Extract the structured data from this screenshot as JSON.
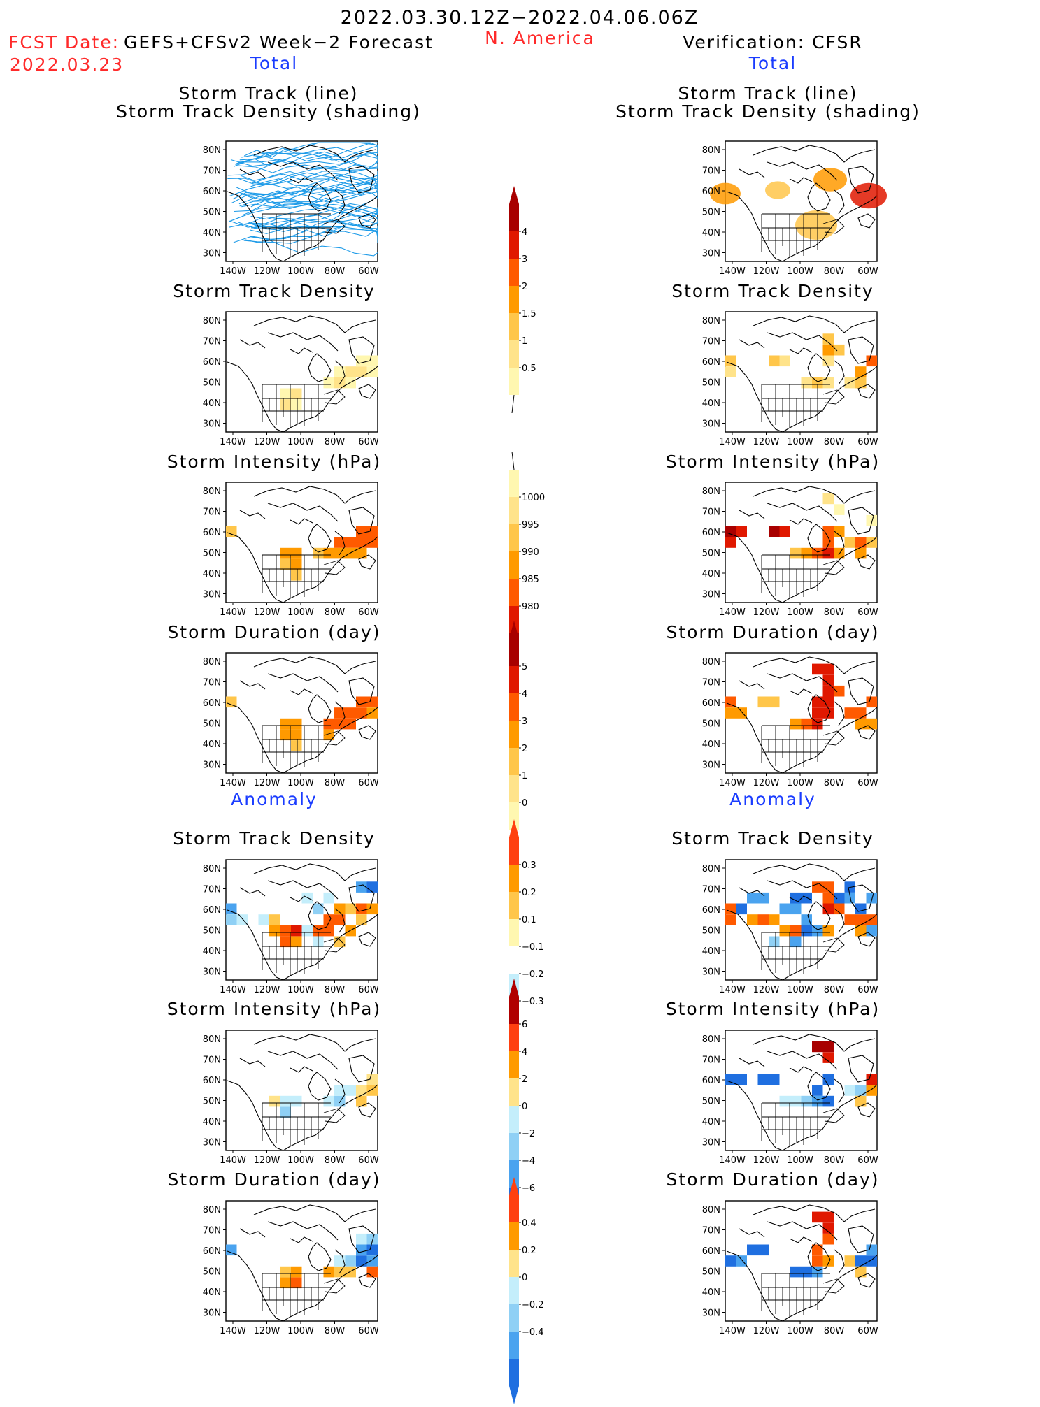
{
  "header": {
    "period": "2022.03.30.12Z−2022.04.06.06Z",
    "fcst_label": "FCST Date:",
    "fcst_date": "2022.03.23",
    "model": "GEFS+CFSv2 Week−2 Forecast",
    "region": "N. America",
    "verification": "Verification: CFSR"
  },
  "sections": {
    "left_total": "Total",
    "right_total": "Total",
    "left_anomaly": "Anomaly",
    "right_anomaly": "Anomaly"
  },
  "panels": {
    "track_line": "Storm Track (line)",
    "track_shading": "Storm Track Density (shading)",
    "density": "Storm Track Density",
    "intensity": "Storm Intensity (hPa)",
    "duration": "Storm Duration (day)"
  },
  "axis": {
    "lat_labels": [
      "80N",
      "70N",
      "60N",
      "50N",
      "40N",
      "30N"
    ],
    "lon_labels": [
      "140W",
      "120W",
      "100W",
      "80W",
      "60W"
    ]
  },
  "colorbars": {
    "track_density": [
      "4",
      "3",
      "2",
      "1.5",
      "1",
      "0.5"
    ],
    "intensity": [
      "1000",
      "995",
      "990",
      "985",
      "980"
    ],
    "duration": [
      "5",
      "4",
      "3",
      "2",
      "1",
      "0"
    ],
    "anom_density": [
      "0.3",
      "0.2",
      "0.1",
      "−0.1",
      "−0.2",
      "−0.3"
    ],
    "anom_intensity": [
      "6",
      "4",
      "2",
      "0",
      "−2",
      "−4",
      "−6"
    ],
    "anom_duration": [
      "0.4",
      "0.2",
      "0",
      "−0.2",
      "−0.4"
    ]
  },
  "colors": {
    "red_title": "#ff2a2a",
    "blue_title": "#1a3cff",
    "track_line": "#1e9be8",
    "warm": [
      "#fff7b0",
      "#ffe38a",
      "#ffc64a",
      "#ff9a00",
      "#ff5a00",
      "#e01800",
      "#a80000"
    ],
    "cool": [
      "#c4eefb",
      "#8fd0f5",
      "#4aa3ef",
      "#1f6fe0"
    ]
  }
}
